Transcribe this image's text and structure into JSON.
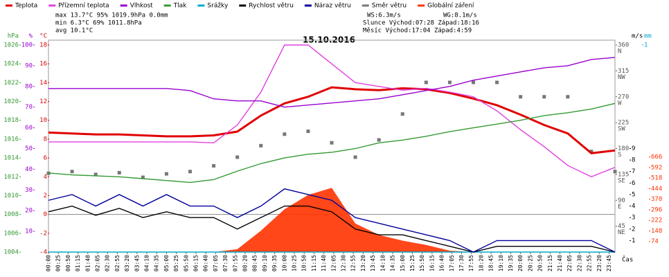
{
  "chart_data": {
    "type": "line",
    "title": "15.10.2016",
    "stats": {
      "left": [
        "max 13.7°C  95%  1019.9hPa  0.0mm",
        "min  6.3°C  69%  1011.8hPa",
        "avg 10.1°C"
      ],
      "wind": [
        "WS:6.3m/s",
        "WG:8.1m/s"
      ],
      "sun": "Slunce Východ:07:28  Západ:18:16",
      "moon": "Měsíc  Východ:17:04  Západ:4:59"
    },
    "xlabel": "Čas",
    "xlim": [
      0,
      1440
    ],
    "xticks": [
      {
        "value": 0,
        "label": "00:00"
      },
      {
        "value": 25,
        "label": "00:25"
      },
      {
        "value": 50,
        "label": "00:50"
      },
      {
        "value": 75,
        "label": "01:15"
      },
      {
        "value": 100,
        "label": "01:40"
      },
      {
        "value": 125,
        "label": "02:05"
      },
      {
        "value": 150,
        "label": "02:30"
      },
      {
        "value": 175,
        "label": "02:55"
      },
      {
        "value": 200,
        "label": "03:20"
      },
      {
        "value": 225,
        "label": "03:45"
      },
      {
        "value": 250,
        "label": "04:10"
      },
      {
        "value": 275,
        "label": "04:35"
      },
      {
        "value": 300,
        "label": "05:00"
      },
      {
        "value": 325,
        "label": "05:25"
      },
      {
        "value": 350,
        "label": "05:50"
      },
      {
        "value": 375,
        "label": "06:15"
      },
      {
        "value": 400,
        "label": "06:40"
      },
      {
        "value": 425,
        "label": "07:05"
      },
      {
        "value": 450,
        "label": "07:30"
      },
      {
        "value": 475,
        "label": "07:55"
      },
      {
        "value": 500,
        "label": "08:20"
      },
      {
        "value": 525,
        "label": "08:45"
      },
      {
        "value": 550,
        "label": "09:10"
      },
      {
        "value": 575,
        "label": "09:35"
      },
      {
        "value": 600,
        "label": "10:00"
      },
      {
        "value": 625,
        "label": "10:25"
      },
      {
        "value": 650,
        "label": "10:50"
      },
      {
        "value": 675,
        "label": "11:15"
      },
      {
        "value": 700,
        "label": "11:40"
      },
      {
        "value": 725,
        "label": "12:05"
      },
      {
        "value": 750,
        "label": "12:30"
      },
      {
        "value": 775,
        "label": "12:55"
      },
      {
        "value": 800,
        "label": "13:20"
      },
      {
        "value": 825,
        "label": "13:45"
      },
      {
        "value": 850,
        "label": "14:10"
      },
      {
        "value": 875,
        "label": "14:35"
      },
      {
        "value": 900,
        "label": "15:00"
      },
      {
        "value": 925,
        "label": "15:25"
      },
      {
        "value": 950,
        "label": "15:50"
      },
      {
        "value": 975,
        "label": "16:15"
      },
      {
        "value": 1000,
        "label": "16:40"
      },
      {
        "value": 1025,
        "label": "17:05"
      },
      {
        "value": 1050,
        "label": "17:30"
      },
      {
        "value": 1075,
        "label": "17:55"
      },
      {
        "value": 1100,
        "label": "18:20"
      },
      {
        "value": 1125,
        "label": "18:45"
      },
      {
        "value": 1150,
        "label": "19:10"
      },
      {
        "value": 1175,
        "label": "19:35"
      },
      {
        "value": 1200,
        "label": "20:00"
      },
      {
        "value": 1225,
        "label": "20:25"
      },
      {
        "value": 1250,
        "label": "20:50"
      },
      {
        "value": 1275,
        "label": "21:15"
      },
      {
        "value": 1300,
        "label": "21:40"
      },
      {
        "value": 1325,
        "label": "22:05"
      },
      {
        "value": 1350,
        "label": "22:30"
      },
      {
        "value": 1375,
        "label": "22:55"
      },
      {
        "value": 1400,
        "label": "23:20"
      },
      {
        "value": 1425,
        "label": "23:45"
      }
    ],
    "axes": {
      "hpa": {
        "unit": "hPa",
        "color": "#339933",
        "lim": [
          1004,
          1026
        ],
        "ticks": [
          1004,
          1006,
          1008,
          1010,
          1012,
          1014,
          1016,
          1018,
          1020,
          1022,
          1024,
          1026
        ]
      },
      "pct": {
        "unit": "%",
        "color": "#9900cc",
        "lim": [
          0,
          100
        ],
        "ticks": [
          10,
          20,
          30,
          40,
          50,
          60,
          70,
          80,
          90,
          100
        ]
      },
      "temp": {
        "unit": "°C",
        "color": "#dd0000",
        "lim": [
          -4,
          18
        ],
        "ticks": [
          -4,
          -2,
          0,
          2,
          4,
          6,
          8,
          10,
          12,
          14,
          16,
          18
        ]
      },
      "dir": {
        "color": "#555555",
        "lim": [
          0,
          360
        ],
        "ticks": [
          45,
          90,
          135,
          180,
          225,
          270,
          315,
          360
        ],
        "compass": [
          "NE",
          "E",
          "SE",
          "S",
          "SW",
          "W",
          "NW",
          "N"
        ]
      },
      "ms": {
        "unit": "m/s",
        "color": "#000000",
        "lim": [
          0,
          18
        ],
        "ticks": [
          1,
          2,
          3,
          4,
          5,
          6,
          7,
          8,
          9
        ]
      },
      "mm": {
        "unit": "mm",
        "color": "#00aacc",
        "lim": [
          0,
          1
        ],
        "ticks": [
          1
        ]
      },
      "wm2": {
        "color": "#ff3300",
        "lim": [
          0,
          1450
        ],
        "ticks": [
          74,
          148,
          222,
          296,
          370,
          444,
          518,
          592,
          666
        ]
      }
    },
    "x": [
      0,
      60,
      120,
      180,
      240,
      300,
      360,
      420,
      480,
      540,
      600,
      660,
      720,
      780,
      840,
      900,
      960,
      1020,
      1080,
      1140,
      1200,
      1260,
      1320,
      1380,
      1440
    ],
    "series": [
      {
        "name": "Teplota",
        "color": "#e00000",
        "axis": "temp",
        "kind": "line",
        "values": [
          8.7,
          8.6,
          8.5,
          8.5,
          8.4,
          8.3,
          8.3,
          8.4,
          8.8,
          10.5,
          11.8,
          12.5,
          13.5,
          13.3,
          13.2,
          13.4,
          13.3,
          12.9,
          12.3,
          11.6,
          10.6,
          9.5,
          8.6,
          6.5,
          6.8
        ]
      },
      {
        "name": "Přízemní teplota",
        "color": "#e040e0",
        "axis": "temp",
        "kind": "line",
        "values": [
          7.7,
          7.7,
          7.7,
          7.7,
          7.7,
          7.7,
          7.7,
          7.6,
          9.5,
          13,
          18,
          18,
          16,
          14,
          13.6,
          13.2,
          13.4,
          13,
          12.5,
          11,
          9,
          7.2,
          5.2,
          4,
          5
        ]
      },
      {
        "name": "Vlhkost",
        "color": "#9900cc",
        "axis": "pct",
        "kind": "line",
        "values": [
          79,
          79,
          79,
          79,
          79,
          79,
          78,
          74,
          73,
          73,
          70,
          71,
          72,
          73,
          74,
          76,
          78,
          80,
          83,
          85,
          87,
          89,
          90,
          93,
          94
        ]
      },
      {
        "name": "Tlak",
        "color": "#339933",
        "axis": "hpa",
        "kind": "line",
        "values": [
          1012.4,
          1012.2,
          1012.1,
          1012,
          1011.8,
          1011.6,
          1011.4,
          1011.7,
          1012.6,
          1013.4,
          1014,
          1014.4,
          1014.6,
          1015,
          1015.6,
          1015.9,
          1016.3,
          1016.8,
          1017.2,
          1017.6,
          1018,
          1018.5,
          1018.8,
          1019.2,
          1019.8
        ]
      },
      {
        "name": "Srážky",
        "color": "#00aacc",
        "axis": "mm",
        "kind": "line",
        "values": [
          0,
          0,
          0,
          0,
          0,
          0,
          0,
          0,
          0,
          0,
          0,
          0,
          0,
          0,
          0,
          0,
          0,
          0,
          0,
          0,
          0,
          0,
          0,
          0,
          0
        ]
      },
      {
        "name": "Rychlost větru",
        "color": "#000000",
        "axis": "ms",
        "kind": "line",
        "values": [
          3.5,
          4,
          3.2,
          3.8,
          3,
          3.5,
          3,
          3,
          2,
          3,
          4,
          4,
          3.5,
          2,
          1.5,
          1.5,
          1,
          0.5,
          0,
          0.5,
          0.5,
          0.5,
          0.5,
          0.5,
          0
        ]
      },
      {
        "name": "Náraz větru",
        "color": "#000099",
        "axis": "ms",
        "kind": "line",
        "values": [
          4.5,
          5,
          4,
          5,
          4,
          5,
          4,
          4,
          3,
          4,
          5.5,
          5,
          4.5,
          3,
          2.5,
          2,
          1.5,
          1,
          0,
          1,
          1,
          1,
          1,
          1,
          0
        ]
      },
      {
        "name": "Směr větru",
        "color": "#777777",
        "axis": "dir",
        "kind": "scatter",
        "values": [
          137,
          140,
          135,
          138,
          130,
          136,
          140,
          150,
          165,
          185,
          205,
          210,
          190,
          165,
          195,
          240,
          295,
          295,
          295,
          295,
          270,
          270,
          270,
          175,
          140
        ]
      },
      {
        "name": "Globální záření",
        "color": "#ff3300",
        "axis": "wm2",
        "kind": "area",
        "values": [
          0,
          0,
          0,
          0,
          0,
          0,
          0,
          0,
          20,
          150,
          300,
          400,
          450,
          200,
          120,
          80,
          50,
          10,
          0,
          0,
          0,
          0,
          0,
          0,
          0
        ]
      }
    ]
  }
}
